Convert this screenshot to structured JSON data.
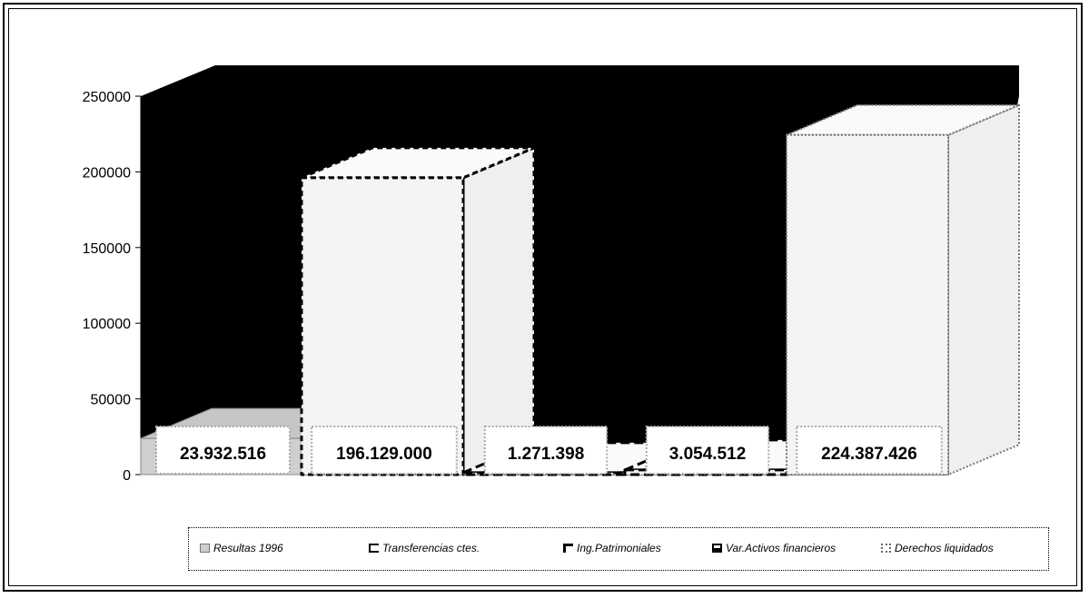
{
  "chart_data": {
    "type": "bar",
    "categories": [
      "Resultas 1996",
      "Transferencias ctes.",
      "Ing.Patrimoniales",
      "Var.Activos financieros",
      "Derechos liquidados"
    ],
    "values": [
      23932516,
      196129000,
      1271398,
      3054512,
      224387426
    ],
    "data_labels": [
      "23.932.516",
      "196.129.000",
      "1.271.398",
      "3.054.512",
      "224.387.426"
    ],
    "y_ticks": [
      "0",
      "50000",
      "100000",
      "150000",
      "200000",
      "250000"
    ],
    "ylim": [
      0,
      250000
    ],
    "legend": [
      "Resultas 1996",
      "Transferencias ctes.",
      "Ing.Patrimoniales",
      "Var.Activos financieros",
      "Derechos liquidados"
    ],
    "legend_placement": "bottom",
    "three_d": true,
    "colors": {
      "back_wall": "#000000",
      "bar_face": "#f4f4f4",
      "first_bar": "#cfcfcf",
      "label_bg": "#ffffff"
    }
  }
}
